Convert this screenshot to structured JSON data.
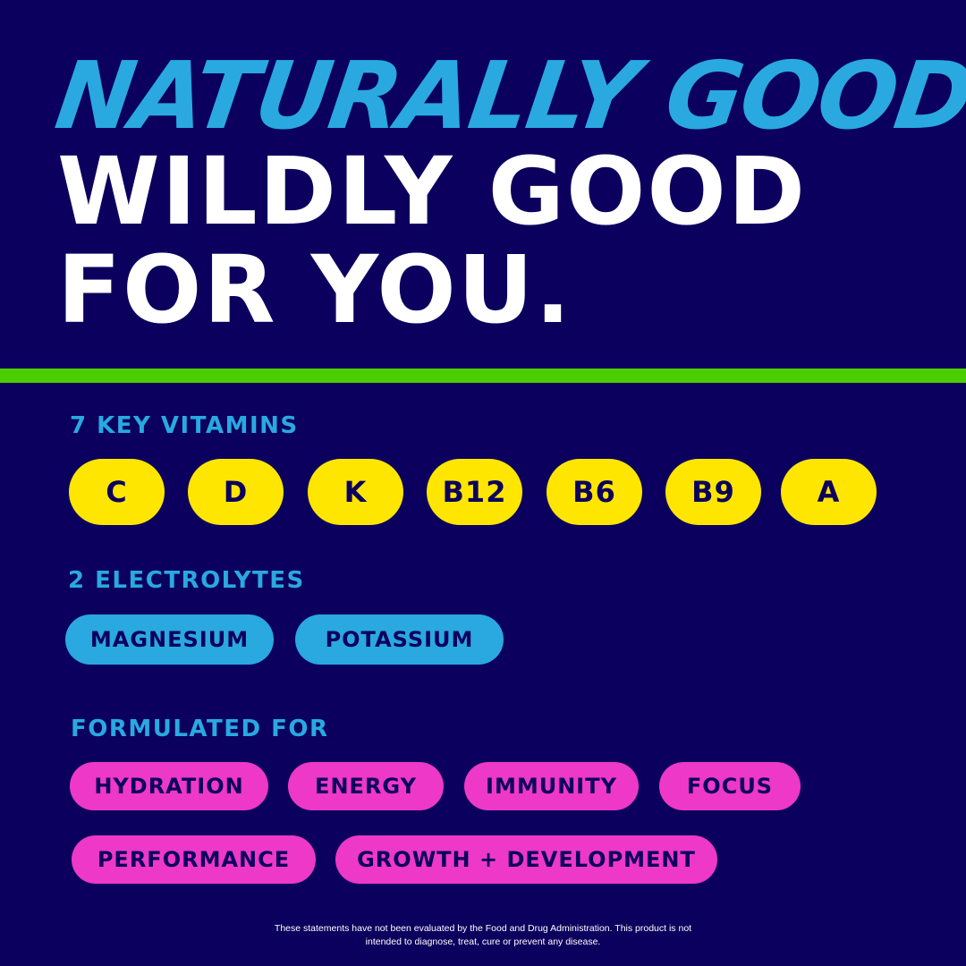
{
  "headline": {
    "line1": "NATURALLY GOOD.",
    "line2": "WILDLY GOOD",
    "line3": "FOR YOU."
  },
  "vitamins": {
    "label": "7 KEY VITAMINS",
    "items": [
      "C",
      "D",
      "K",
      "B12",
      "B6",
      "B9",
      "A"
    ]
  },
  "electrolytes": {
    "label": "2 ELECTROLYTES",
    "items": [
      "MAGNESIUM",
      "POTASSIUM"
    ]
  },
  "formulated": {
    "label": "FORMULATED FOR",
    "items": [
      "HYDRATION",
      "ENERGY",
      "IMMUNITY",
      "FOCUS",
      "PERFORMANCE",
      "GROWTH + DEVELOPMENT"
    ]
  },
  "disclaimer": {
    "line1": "These statements have not been evaluated by the Food and Drug Administration. This product is not",
    "line2": "intended to diagnose, treat, cure or prevent any disease."
  },
  "colors": {
    "background": "#0c005e",
    "blue": "#29a9e0",
    "green": "#4ccd00",
    "yellow": "#ffe600",
    "pink": "#ee38c8"
  }
}
